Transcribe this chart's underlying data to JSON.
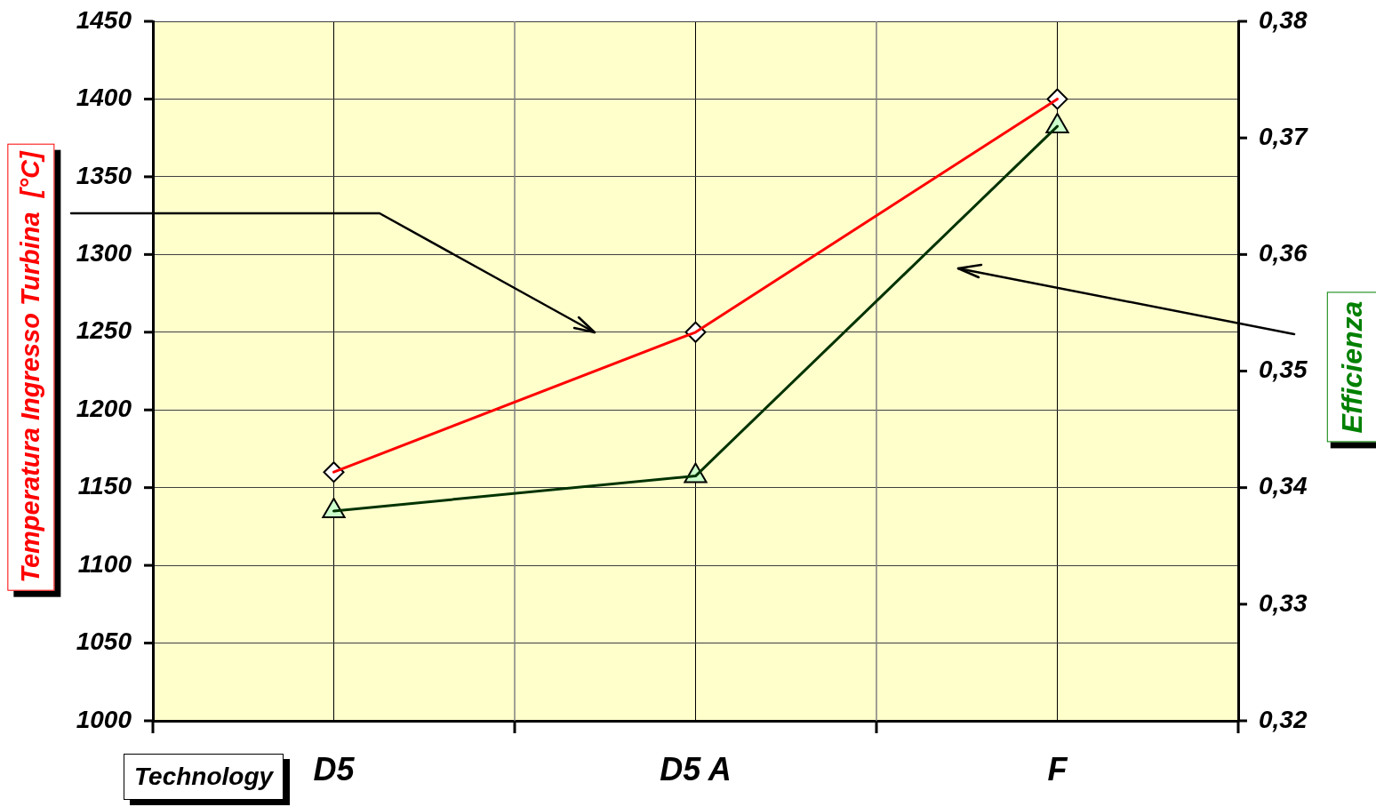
{
  "chart_data": {
    "type": "line",
    "categories": [
      "D5",
      "D5 A",
      "F"
    ],
    "xlabel": "Technology",
    "ylabel": "Temperatura Ingresso Turbina  [°C]",
    "y2label": "Efficienza",
    "series": [
      {
        "color": "#ff0000",
        "values": [
          1160,
          1250,
          1400
        ],
        "marker": "diamond"
      },
      {
        "color": "#003300",
        "values": [
          0.338,
          0.341,
          0.371
        ],
        "marker": "triangle",
        "axis": "y2"
      }
    ],
    "ylim": [
      1000,
      1450
    ],
    "yticks": [
      1000,
      1050,
      1100,
      1150,
      1200,
      1250,
      1300,
      1350,
      1400,
      1450
    ],
    "y2lim": [
      0.32,
      0.38
    ],
    "y2ticks": [
      {
        "value": 0.32,
        "label": "0,32"
      },
      {
        "value": 0.33,
        "label": "0,33"
      },
      {
        "value": 0.34,
        "label": "0,34"
      },
      {
        "value": 0.35,
        "label": "0,35"
      },
      {
        "value": 0.36,
        "label": "0,36"
      },
      {
        "value": 0.37,
        "label": "0,37"
      },
      {
        "value": 0.38,
        "label": "0,38"
      }
    ],
    "grid": true
  }
}
